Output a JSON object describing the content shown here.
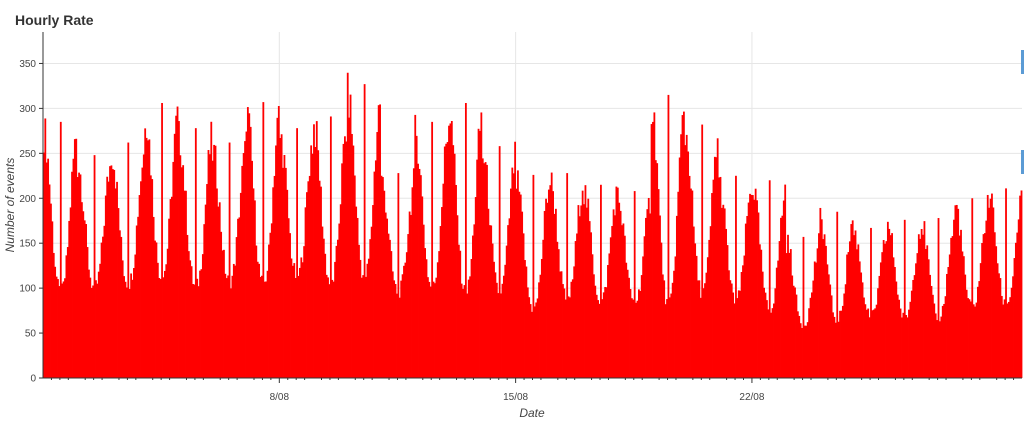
{
  "chart_data": {
    "type": "bar",
    "title": "Hourly Rate",
    "xlabel": "Date",
    "ylabel": "Number of events",
    "series_color": "#ff0000",
    "grid": true,
    "legend": "none",
    "x_start": "1/08",
    "x_end": "29/08",
    "xlim": [
      "2016-08-01",
      "2016-08-29"
    ],
    "ylim": [
      0,
      385
    ],
    "x_ticks": [
      {
        "label": "8/08",
        "day": 7
      },
      {
        "label": "15/08",
        "day": 14
      },
      {
        "label": "22/08",
        "day": 21
      }
    ],
    "y_ticks": [
      0,
      50,
      100,
      150,
      200,
      250,
      300,
      350
    ],
    "daily_peaks": [
      285,
      248,
      262,
      306,
      278,
      262,
      307,
      278,
      291,
      327,
      228,
      285,
      306,
      258,
      226,
      228,
      215,
      208,
      315,
      282,
      225,
      220,
      157,
      185,
      167,
      176,
      178,
      200,
      211
    ],
    "daily_troughs": [
      100,
      105,
      110,
      118,
      106,
      112,
      110,
      118,
      110,
      118,
      100,
      105,
      100,
      100,
      80,
      92,
      90,
      88,
      85,
      100,
      90,
      80,
      62,
      68,
      72,
      70,
      70,
      82,
      85
    ]
  }
}
